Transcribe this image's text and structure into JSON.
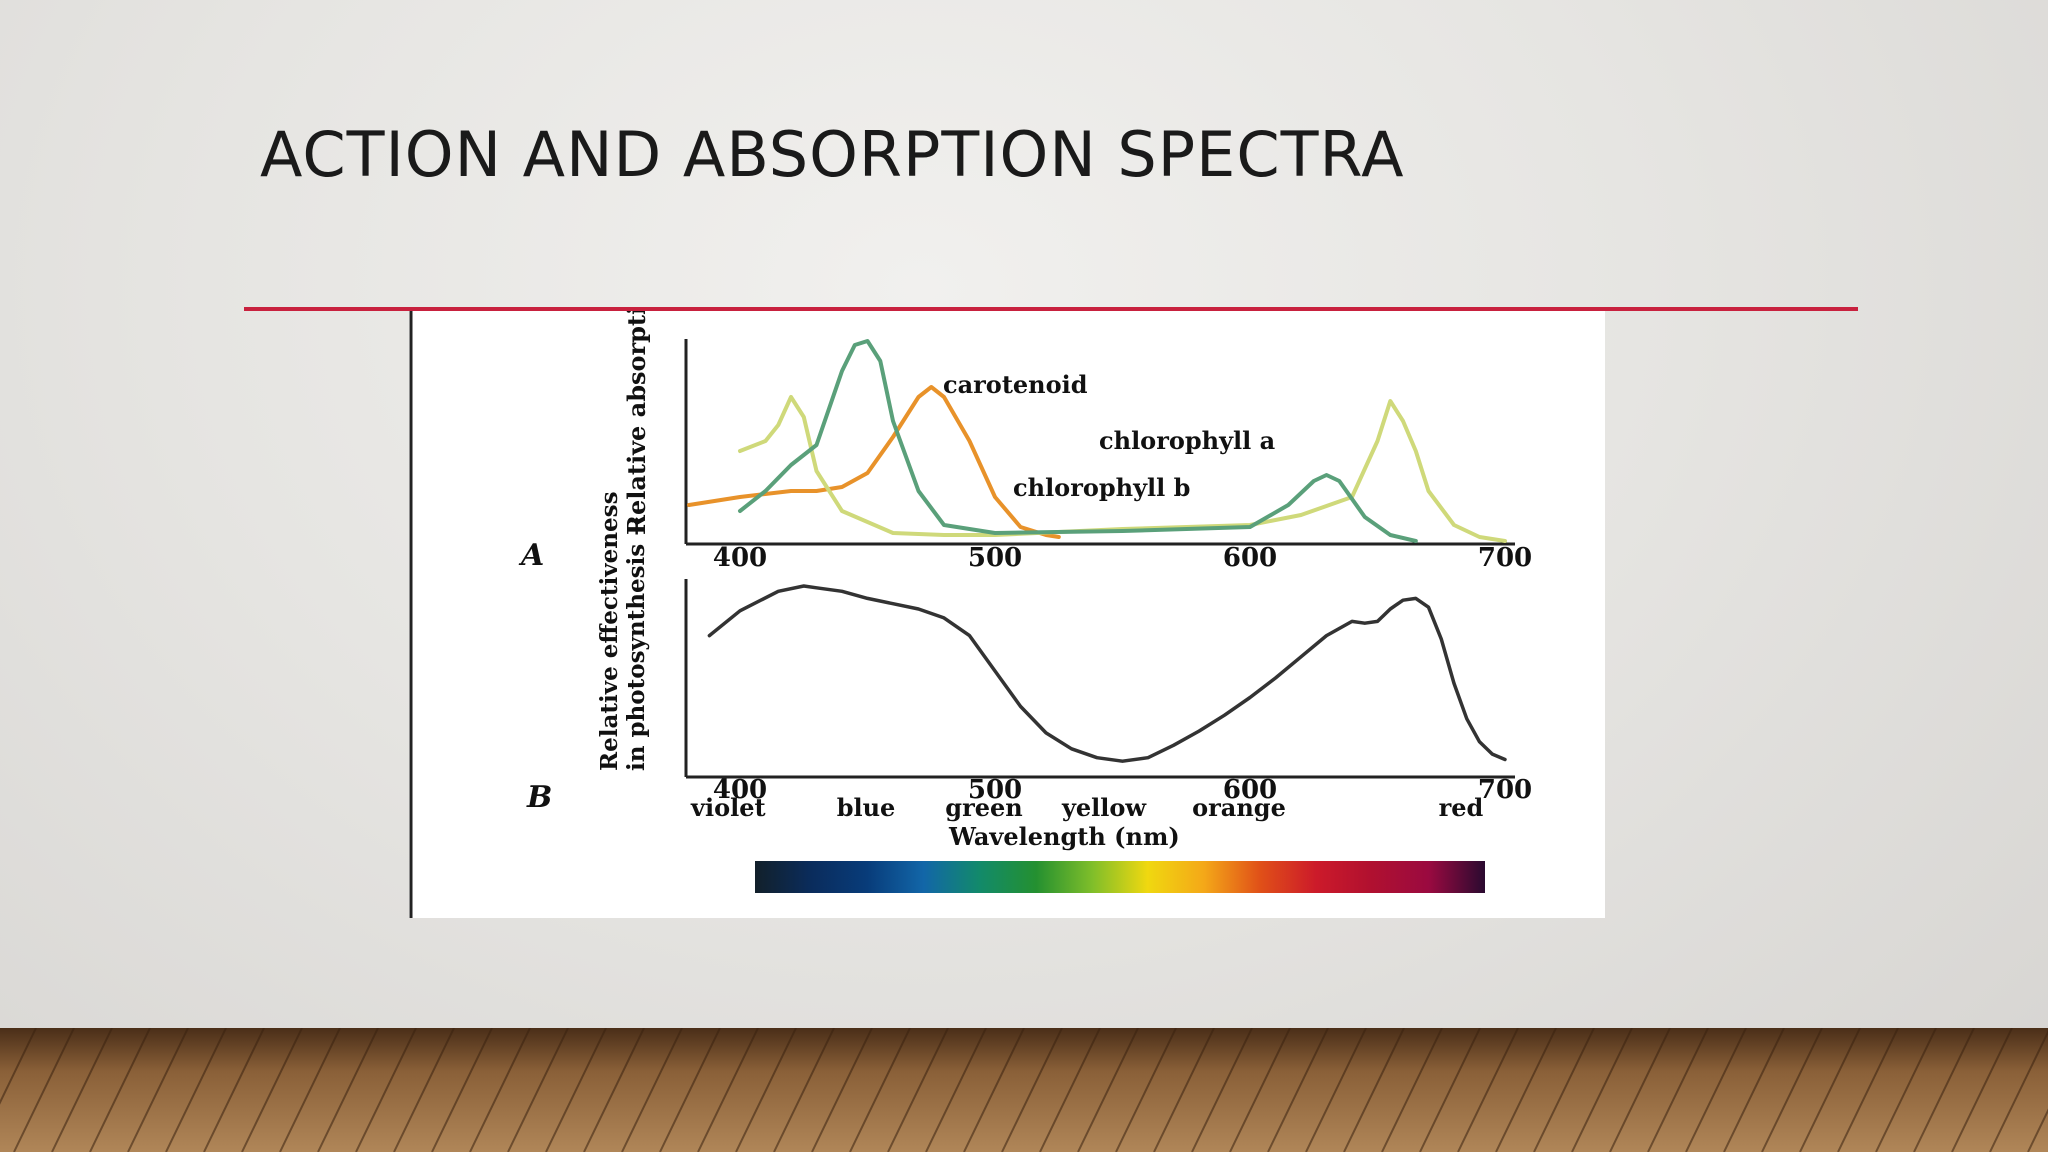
{
  "slide": {
    "title": "ACTION AND ABSORPTION SPECTRA",
    "accent_color": "#c8213e"
  },
  "chart_data": [
    {
      "type": "line",
      "panel_label": "A",
      "ylabel": "Relative absorption →",
      "xlim": [
        380,
        700
      ],
      "ylim": [
        0,
        1
      ],
      "xticks": [
        400,
        500,
        600,
        700
      ],
      "series": [
        {
          "name": "carotenoid",
          "color": "#e8922a",
          "x": [
            380,
            400,
            420,
            430,
            440,
            450,
            460,
            470,
            475,
            480,
            490,
            500,
            510,
            520,
            525
          ],
          "y": [
            0.18,
            0.22,
            0.25,
            0.25,
            0.27,
            0.34,
            0.52,
            0.72,
            0.77,
            0.72,
            0.5,
            0.22,
            0.07,
            0.03,
            0.02
          ]
        },
        {
          "name": "chlorophyll a",
          "color": "#cfd97a",
          "x": [
            400,
            410,
            415,
            420,
            425,
            430,
            440,
            460,
            480,
            500,
            550,
            600,
            620,
            640,
            650,
            655,
            660,
            665,
            670,
            680,
            690,
            700
          ],
          "y": [
            0.45,
            0.5,
            0.58,
            0.72,
            0.62,
            0.35,
            0.15,
            0.04,
            0.03,
            0.03,
            0.06,
            0.08,
            0.13,
            0.22,
            0.5,
            0.7,
            0.6,
            0.45,
            0.25,
            0.08,
            0.02,
            0.0
          ]
        },
        {
          "name": "chlorophyll b",
          "color": "#5aa07a",
          "x": [
            400,
            410,
            420,
            430,
            440,
            445,
            450,
            455,
            460,
            470,
            480,
            500,
            550,
            600,
            615,
            625,
            630,
            635,
            645,
            655,
            665
          ],
          "y": [
            0.15,
            0.25,
            0.38,
            0.48,
            0.85,
            0.98,
            1.0,
            0.9,
            0.6,
            0.25,
            0.08,
            0.04,
            0.05,
            0.07,
            0.18,
            0.3,
            0.33,
            0.3,
            0.12,
            0.03,
            0.0
          ]
        }
      ]
    },
    {
      "type": "line",
      "panel_label": "B",
      "ylabel": "Relative effectiveness in photosynthesis →",
      "xlabel": "Wavelength (nm)",
      "xlim": [
        380,
        700
      ],
      "ylim": [
        0,
        1
      ],
      "xticks": [
        400,
        500,
        600,
        700
      ],
      "color_labels": [
        "violet",
        "blue",
        "green",
        "yellow",
        "orange",
        "red"
      ],
      "series": [
        {
          "color": "#333333",
          "x": [
            388,
            400,
            415,
            425,
            430,
            440,
            450,
            460,
            470,
            480,
            490,
            500,
            510,
            520,
            530,
            540,
            550,
            560,
            570,
            580,
            590,
            600,
            610,
            620,
            630,
            640,
            645,
            650,
            655,
            660,
            665,
            670,
            675,
            680,
            685,
            690,
            695,
            700
          ],
          "y": [
            0.72,
            0.86,
            0.97,
            1.0,
            0.99,
            0.97,
            0.93,
            0.9,
            0.87,
            0.82,
            0.72,
            0.52,
            0.32,
            0.17,
            0.08,
            0.03,
            0.01,
            0.03,
            0.1,
            0.18,
            0.27,
            0.37,
            0.48,
            0.6,
            0.72,
            0.8,
            0.79,
            0.8,
            0.87,
            0.92,
            0.93,
            0.88,
            0.7,
            0.45,
            0.25,
            0.12,
            0.05,
            0.02
          ]
        }
      ]
    }
  ],
  "spectrum_bar": {
    "colors": [
      "#12202a",
      "#0a2c5c",
      "#083c7a",
      "#1266a8",
      "#128a6a",
      "#249030",
      "#7fbe2a",
      "#f0d810",
      "#f4a818",
      "#e05018",
      "#cc1a2a",
      "#b01030",
      "#9a0a40",
      "#2a0a30"
    ]
  }
}
